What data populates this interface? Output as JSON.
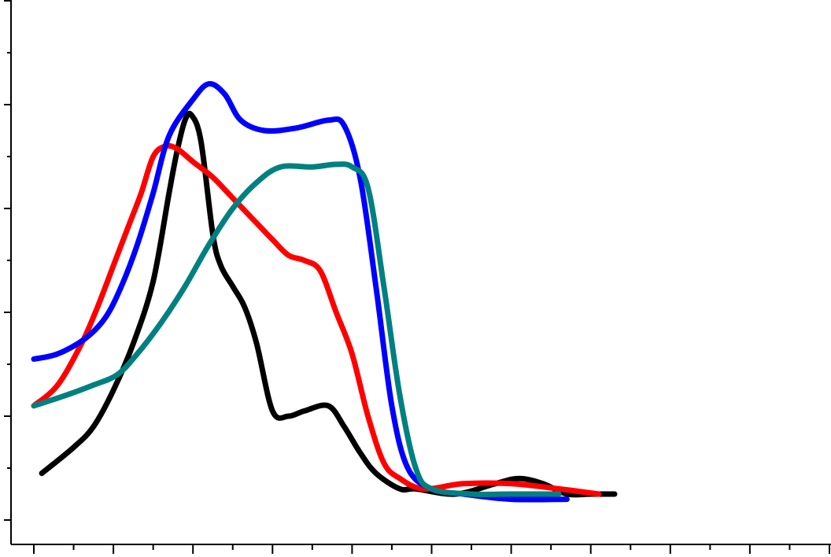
{
  "chart_data": {
    "type": "line",
    "title": "",
    "xlabel": "",
    "ylabel": "",
    "xlim": [
      0,
      100
    ],
    "ylim": [
      0,
      100
    ],
    "grid": false,
    "x_ticks_major": [
      0,
      10,
      20,
      30,
      40,
      50,
      60,
      70,
      80,
      90,
      100
    ],
    "x_ticks_minor": [
      5,
      15,
      25,
      35,
      45,
      55,
      65,
      75,
      85,
      95
    ],
    "y_ticks_major": [
      0,
      20,
      40,
      60,
      80,
      100
    ],
    "y_ticks_minor": [
      10,
      30,
      50,
      70,
      90
    ],
    "series": [
      {
        "color": "#000000",
        "points": [
          [
            1,
            9
          ],
          [
            5,
            14
          ],
          [
            7.5,
            18
          ],
          [
            10,
            25
          ],
          [
            12.5,
            34
          ],
          [
            15,
            46
          ],
          [
            17,
            63
          ],
          [
            18,
            71
          ],
          [
            19,
            77
          ],
          [
            19.8,
            78
          ],
          [
            21,
            73
          ],
          [
            22.5,
            55
          ],
          [
            23.5,
            49
          ],
          [
            25,
            45
          ],
          [
            26.5,
            41
          ],
          [
            28,
            34
          ],
          [
            30,
            21
          ],
          [
            32,
            20
          ],
          [
            34,
            21
          ],
          [
            37,
            22
          ],
          [
            39,
            18
          ],
          [
            41,
            13
          ],
          [
            43,
            9
          ],
          [
            46,
            6
          ],
          [
            48,
            6
          ],
          [
            53,
            5
          ],
          [
            58,
            7
          ],
          [
            61,
            8
          ],
          [
            64,
            7
          ],
          [
            67,
            5
          ],
          [
            70,
            5
          ],
          [
            73,
            5
          ]
        ]
      },
      {
        "color": "#ff0000",
        "points": [
          [
            0,
            22
          ],
          [
            3,
            26
          ],
          [
            6,
            34
          ],
          [
            8,
            41
          ],
          [
            10,
            49
          ],
          [
            12,
            57
          ],
          [
            13.5,
            63
          ],
          [
            15,
            70
          ],
          [
            16.5,
            72
          ],
          [
            18,
            71.5
          ],
          [
            20,
            69
          ],
          [
            22.5,
            66
          ],
          [
            25,
            62
          ],
          [
            27.5,
            58
          ],
          [
            30,
            54
          ],
          [
            32,
            51
          ],
          [
            34,
            50
          ],
          [
            36,
            48
          ],
          [
            38,
            40
          ],
          [
            40,
            32
          ],
          [
            42,
            20
          ],
          [
            44,
            11
          ],
          [
            46,
            8
          ],
          [
            49,
            6
          ],
          [
            54,
            7
          ],
          [
            60,
            7
          ],
          [
            66,
            6
          ],
          [
            71,
            5
          ]
        ]
      },
      {
        "color": "#0000ff",
        "points": [
          [
            0,
            31
          ],
          [
            3,
            32
          ],
          [
            6.5,
            35
          ],
          [
            9,
            39
          ],
          [
            11,
            45
          ],
          [
            13,
            53
          ],
          [
            15,
            63
          ],
          [
            17,
            74
          ],
          [
            20,
            81
          ],
          [
            22,
            84
          ],
          [
            24,
            82
          ],
          [
            26,
            77
          ],
          [
            29,
            75
          ],
          [
            33,
            75.5
          ],
          [
            37,
            77
          ],
          [
            39,
            76
          ],
          [
            41,
            66
          ],
          [
            43,
            45
          ],
          [
            45,
            22
          ],
          [
            47,
            10
          ],
          [
            50,
            6
          ],
          [
            54,
            5
          ],
          [
            60,
            4
          ],
          [
            67,
            4
          ]
        ]
      },
      {
        "color": "#008080",
        "points": [
          [
            0,
            22
          ],
          [
            4,
            24
          ],
          [
            7.5,
            26
          ],
          [
            10.5,
            28
          ],
          [
            13,
            32
          ],
          [
            16,
            38
          ],
          [
            19,
            45
          ],
          [
            22,
            53
          ],
          [
            25,
            60
          ],
          [
            28,
            65
          ],
          [
            31,
            68
          ],
          [
            35,
            68
          ],
          [
            38,
            68.5
          ],
          [
            40,
            68
          ],
          [
            42,
            64
          ],
          [
            44,
            45
          ],
          [
            46,
            24
          ],
          [
            48,
            10
          ],
          [
            50,
            6
          ],
          [
            55,
            5
          ],
          [
            60,
            5
          ],
          [
            66,
            5
          ]
        ]
      }
    ]
  }
}
